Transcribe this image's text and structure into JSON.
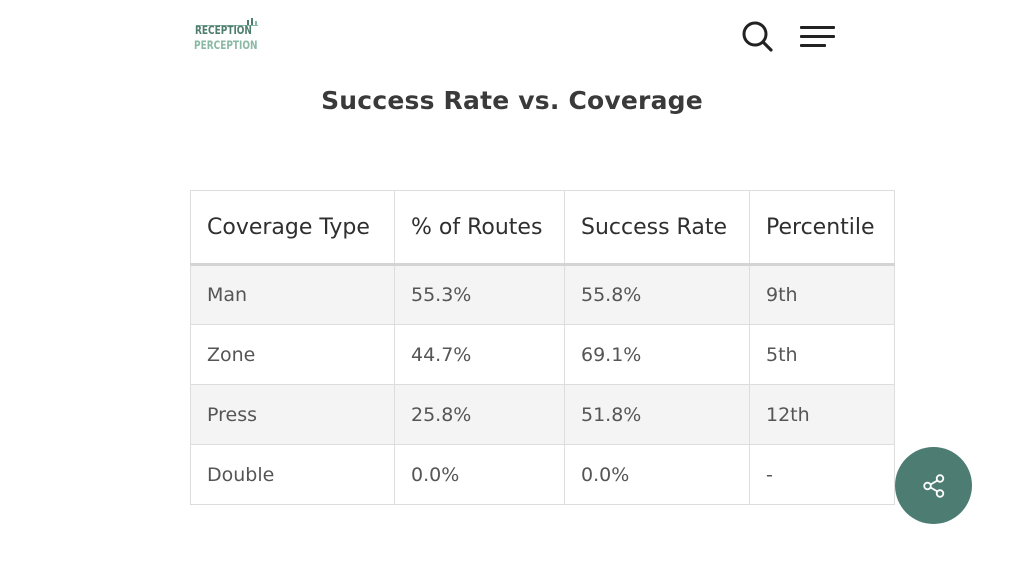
{
  "header": {
    "logo": {
      "line1": "RECEPTION",
      "line2": "PERCEPTION",
      "color_primary": "#4f7d6d",
      "color_secondary": "#8ab8a6"
    },
    "search_icon": "search-icon",
    "menu_icon": "hamburger-menu-icon"
  },
  "main": {
    "title": "Success Rate vs. Coverage",
    "table": {
      "columns": [
        "Coverage Type",
        "% of Routes",
        "Success Rate",
        "Percentile"
      ],
      "rows": [
        [
          "Man",
          "55.3%",
          "55.8%",
          "9th"
        ],
        [
          "Zone",
          "44.7%",
          "69.1%",
          "5th"
        ],
        [
          "Press",
          "25.8%",
          "51.8%",
          "12th"
        ],
        [
          "Double",
          "0.0%",
          "0.0%",
          "-"
        ]
      ]
    }
  },
  "share_button": {
    "icon": "share-icon",
    "color": "#4c7c72"
  }
}
